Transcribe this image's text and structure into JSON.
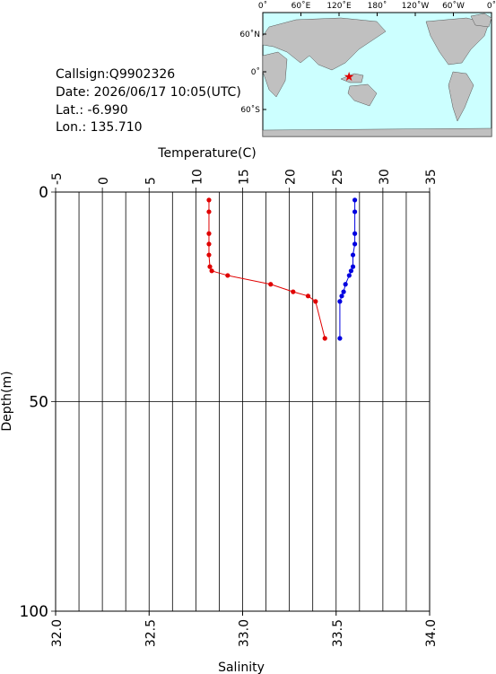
{
  "chart_data": {
    "type": "profile",
    "info": [
      "Callsign:Q9902326",
      "Date:  2026/06/17 10:05(UTC)",
      "Lat.:   -6.990",
      "Lon.:  135.710"
    ],
    "x_label": "Temperature(C)",
    "x2_label": "Salinity",
    "y_label": "Depth(m)",
    "xlim": [
      -5,
      35
    ],
    "xticks": [
      -5,
      0,
      5,
      10,
      15,
      20,
      25,
      30,
      35
    ],
    "xminorticks": [
      -2.5,
      2.5,
      7.5,
      12.5,
      17.5,
      22.5,
      27.5,
      32.5
    ],
    "x2lim": [
      32,
      34
    ],
    "x2ticks": [
      {
        "value": 32,
        "label": "32.0"
      },
      32.5,
      {
        "value": 33,
        "label": "33.0"
      },
      33.5,
      {
        "value": 34,
        "label": "34.0"
      }
    ],
    "ylim": [
      0,
      100
    ],
    "yticks": [
      0,
      50,
      100
    ],
    "depth": [
      1.9,
      4.7,
      9.9,
      12.4,
      15,
      17.8,
      18.8,
      19.9,
      22,
      23.8,
      24.8,
      26.1,
      34.9
    ],
    "series": [
      {
        "name": "Temperature",
        "color": "#e00000",
        "values": [
          11.4,
          11.4,
          11.4,
          11.4,
          11.4,
          11.5,
          11.7,
          13.4,
          18.0,
          20.4,
          22.0,
          22.8,
          23.8
        ]
      },
      {
        "name": "Salinity",
        "color": "#0000e0",
        "axis": "x2",
        "values": [
          33.6,
          33.6,
          33.6,
          33.6,
          33.59,
          33.59,
          33.58,
          33.57,
          33.55,
          33.54,
          33.53,
          33.52,
          33.52
        ]
      }
    ],
    "map": {
      "lon_ticks": [
        "0˚",
        "60˚E",
        "120˚E",
        "180˚",
        "120˚W",
        "60˚W",
        "0˚"
      ],
      "lat_ticks": [
        {
          "value": 60,
          "label": "60˚N"
        },
        {
          "value": 0,
          "label": "0˚"
        },
        {
          "value": -60,
          "label": "60˚S"
        }
      ],
      "station": {
        "lon": 135.71,
        "lat": -6.99
      }
    }
  }
}
